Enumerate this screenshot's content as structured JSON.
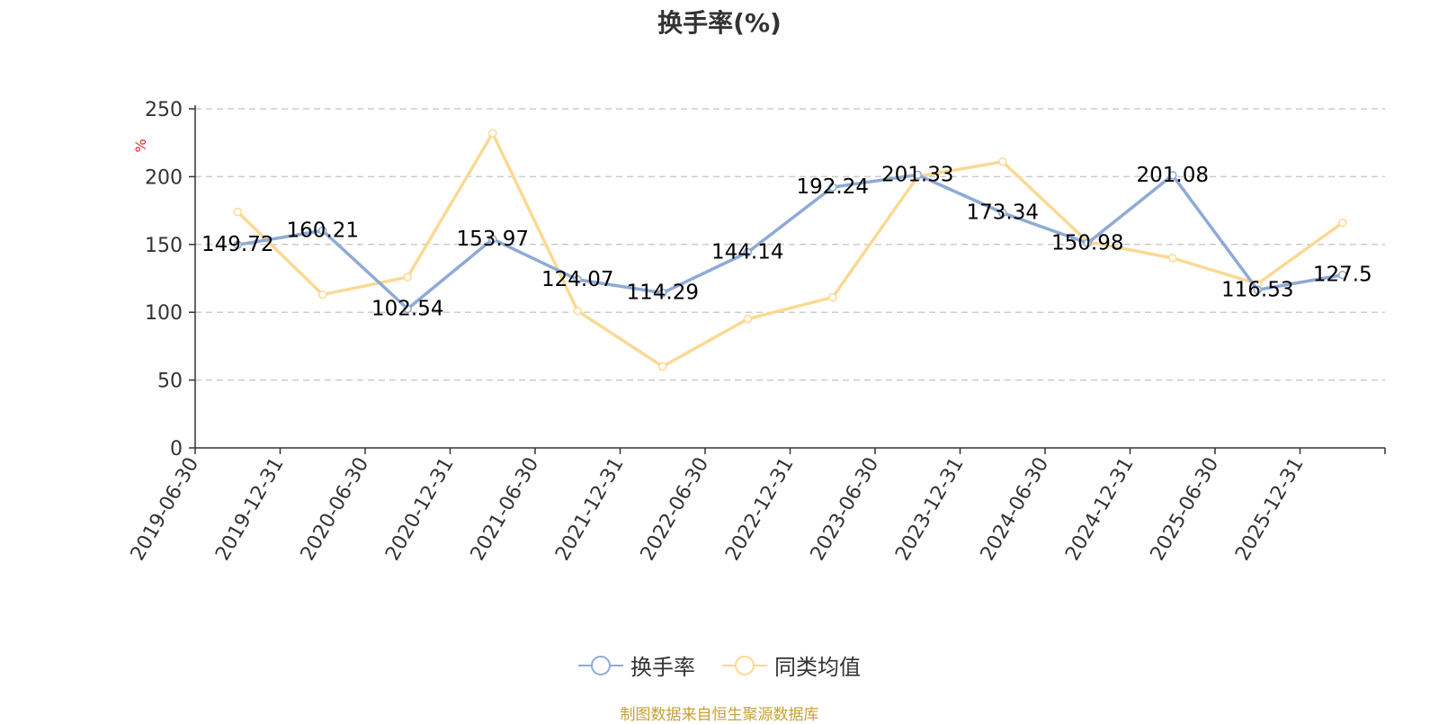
{
  "title": "换手率(%)",
  "source": "制图数据来自恒生聚源数据库",
  "chart_data": {
    "type": "line",
    "title": "换手率(%)",
    "ylabel": "%",
    "ylim": [
      0,
      250
    ],
    "yticks": [
      0,
      50,
      100,
      150,
      200,
      250
    ],
    "grid": true,
    "legend_position": "bottom",
    "categories": [
      "2019-06-30",
      "2019-12-31",
      "2020-06-30",
      "2020-12-31",
      "2021-06-30",
      "2021-12-31",
      "2022-06-30",
      "2022-12-31",
      "2023-06-30",
      "2023-12-31",
      "2024-06-30",
      "2024-12-31",
      "2025-06-30",
      "2025-12-31"
    ],
    "series": [
      {
        "name": "换手率",
        "color": "#8eaad6",
        "values": [
          149.72,
          160.21,
          102.54,
          153.97,
          124.07,
          114.29,
          144.14,
          192.24,
          201.33,
          173.34,
          150.98,
          201.08,
          116.53,
          127.5
        ],
        "labels": [
          "149.72",
          "160.21",
          "102.54",
          "153.97",
          "124.07",
          "114.29",
          "144.14",
          "192.24",
          "201.33",
          "173.34",
          "150.98",
          "201.08",
          "116.53",
          "127.5"
        ]
      },
      {
        "name": "同类均值",
        "color": "#fbd993",
        "values": [
          174,
          113,
          126,
          232,
          101,
          60,
          95,
          111,
          200,
          211,
          152,
          140,
          121,
          166
        ]
      }
    ]
  }
}
